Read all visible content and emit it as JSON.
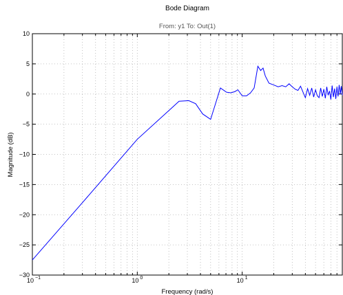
{
  "chart_data": {
    "type": "line",
    "title": "Bode Diagram",
    "subtitle": "From: y1  To: Out(1)",
    "xlabel": "Frequency  (rad/s)",
    "ylabel": "Magnitude (dB)",
    "xscale": "log",
    "xlim": [
      0.1,
      90
    ],
    "ylim": [
      -30,
      10
    ],
    "grid": true,
    "y_ticks": [
      {
        "value": 10,
        "label": "10"
      },
      {
        "value": 5,
        "label": "5"
      },
      {
        "value": 0,
        "label": "0"
      },
      {
        "value": -5,
        "label": "−5"
      },
      {
        "value": -10,
        "label": "−10"
      },
      {
        "value": -15,
        "label": "−15"
      },
      {
        "value": -20,
        "label": "−20"
      },
      {
        "value": -25,
        "label": "−25"
      },
      {
        "value": -30,
        "label": "−30"
      }
    ],
    "x_major_ticks": [
      {
        "value": 0.1,
        "base": "10",
        "exp": "−1"
      },
      {
        "value": 1,
        "base": "10",
        "exp": "0"
      },
      {
        "value": 10,
        "base": "10",
        "exp": "1"
      }
    ],
    "series": [
      {
        "color": "#0000ff",
        "points": [
          [
            0.1,
            -27.5
          ],
          [
            0.3,
            -18.0
          ],
          [
            1.0,
            -7.5
          ],
          [
            2.5,
            -1.2
          ],
          [
            3.1,
            -1.1
          ],
          [
            3.6,
            -1.6
          ],
          [
            4.2,
            -3.3
          ],
          [
            5.0,
            -4.2
          ],
          [
            6.2,
            1.0
          ],
          [
            7.1,
            0.3
          ],
          [
            7.8,
            0.2
          ],
          [
            8.5,
            0.4
          ],
          [
            9.1,
            0.7
          ],
          [
            10.0,
            -0.3
          ],
          [
            11.0,
            -0.3
          ],
          [
            12.0,
            0.2
          ],
          [
            13.0,
            1.0
          ],
          [
            14.1,
            4.6
          ],
          [
            15.0,
            3.9
          ],
          [
            15.8,
            4.3
          ],
          [
            16.6,
            3.0
          ],
          [
            18.0,
            1.8
          ],
          [
            20.0,
            1.5
          ],
          [
            22.0,
            1.2
          ],
          [
            24.0,
            1.4
          ],
          [
            26.0,
            1.2
          ],
          [
            28.0,
            1.7
          ],
          [
            30.0,
            1.2
          ],
          [
            32.0,
            0.8
          ],
          [
            34.0,
            0.6
          ],
          [
            36.0,
            1.3
          ],
          [
            38.0,
            0.3
          ],
          [
            40.0,
            -0.6
          ],
          [
            42.0,
            0.9
          ],
          [
            44.0,
            -0.2
          ],
          [
            46.0,
            1.0
          ],
          [
            48.0,
            -0.5
          ],
          [
            50.0,
            0.7
          ],
          [
            52.0,
            -0.3
          ],
          [
            54.0,
            -0.6
          ],
          [
            56.0,
            1.0
          ],
          [
            58.0,
            -0.4
          ],
          [
            60.0,
            0.8
          ],
          [
            62.0,
            -0.7
          ],
          [
            64.0,
            1.2
          ],
          [
            66.0,
            -0.2
          ],
          [
            68.0,
            0.5
          ],
          [
            70.0,
            -0.9
          ],
          [
            72.0,
            1.4
          ],
          [
            74.0,
            -0.5
          ],
          [
            76.0,
            0.9
          ],
          [
            78.0,
            -0.8
          ],
          [
            80.0,
            1.2
          ],
          [
            82.0,
            -0.4
          ],
          [
            84.0,
            1.5
          ],
          [
            86.0,
            0.0
          ],
          [
            88.0,
            1.3
          ],
          [
            90.0,
            -0.2
          ]
        ]
      }
    ]
  }
}
